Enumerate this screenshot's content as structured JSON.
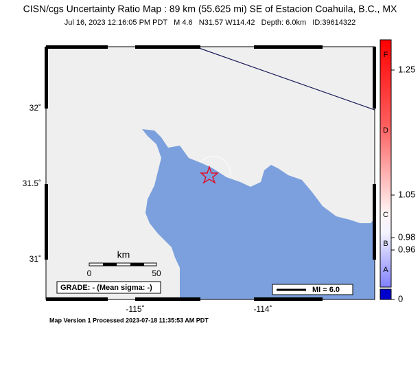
{
  "header": {
    "title": "CISN/cgs Uncertainty Ratio Map : 89 km (55.625 mi) SE of Estacion Coahuila, B.C., MX",
    "subtitle": "Jul 16, 2023 12:16:05 PM PDT   M 4.6   N31.57 W114.42   Depth: 6.0km   ID:39614322"
  },
  "map": {
    "lat_labels": [
      "32˚",
      "31.5˚",
      "31˚"
    ],
    "lon_labels": [
      "-115˚",
      "-114˚"
    ],
    "scale_bar": {
      "unit": "km",
      "start": "0",
      "end": "50"
    },
    "grade": "GRADE: - (Mean sigma: -)",
    "legend": "MI = 6.0"
  },
  "colorbar": {
    "letters": [
      "F",
      "D",
      "C",
      "B",
      "A"
    ],
    "tick_labels": [
      "1.25",
      "1.05",
      "0.98",
      "0.96",
      "0"
    ]
  },
  "footer": "Map Version 1 Processed 2023-07-18 11:35:53 AM PDT"
}
